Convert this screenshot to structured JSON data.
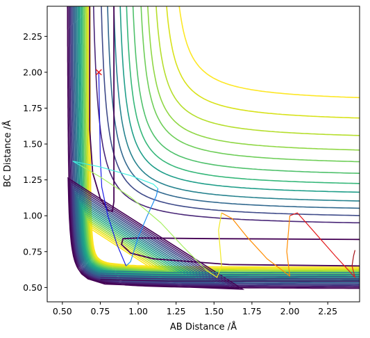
{
  "chart_data": {
    "type": "contour",
    "xlabel": "AB Distance /Å",
    "ylabel": "BC Distance /Å",
    "xlim": [
      0.4,
      2.46
    ],
    "ylim": [
      0.4,
      2.46
    ],
    "xticks": [
      "0.50",
      "0.75",
      "1.00",
      "1.25",
      "1.50",
      "1.75",
      "2.00",
      "2.25"
    ],
    "yticks": [
      "0.50",
      "0.75",
      "1.00",
      "1.25",
      "1.50",
      "1.75",
      "2.00",
      "2.25"
    ],
    "grid": false,
    "colormap": [
      "#440154",
      "#482677",
      "#3e4a89",
      "#31688e",
      "#26828e",
      "#1f9e89",
      "#35b779",
      "#6ece58",
      "#b5de2b",
      "#fde725"
    ],
    "contour_levels": [
      {
        "x0": 0.68,
        "y0": 0.64,
        "color": "#fde725"
      },
      {
        "x0": 0.672,
        "y0": 0.632,
        "color": "#f5e424"
      },
      {
        "x0": 0.664,
        "y0": 0.624,
        "color": "#d8e219"
      },
      {
        "x0": 0.656,
        "y0": 0.616,
        "color": "#b5de2b"
      },
      {
        "x0": 0.648,
        "y0": 0.608,
        "color": "#8fd744"
      },
      {
        "x0": 0.64,
        "y0": 0.6,
        "color": "#6ece58"
      },
      {
        "x0": 0.632,
        "y0": 0.592,
        "color": "#4fc16b"
      },
      {
        "x0": 0.624,
        "y0": 0.584,
        "color": "#35b779"
      },
      {
        "x0": 0.616,
        "y0": 0.576,
        "color": "#25a784"
      },
      {
        "x0": 0.608,
        "y0": 0.568,
        "color": "#1f9e89"
      },
      {
        "x0": 0.6,
        "y0": 0.56,
        "color": "#21918c"
      },
      {
        "x0": 0.592,
        "y0": 0.552,
        "color": "#26828e"
      },
      {
        "x0": 0.584,
        "y0": 0.544,
        "color": "#2c728e"
      },
      {
        "x0": 0.576,
        "y0": 0.536,
        "color": "#31688e"
      },
      {
        "x0": 0.568,
        "y0": 0.528,
        "color": "#365c8d"
      },
      {
        "x0": 0.56,
        "y0": 0.52,
        "color": "#3e4a89"
      },
      {
        "x0": 0.552,
        "y0": 0.512,
        "color": "#433e85"
      },
      {
        "x0": 0.544,
        "y0": 0.504,
        "color": "#482677"
      },
      {
        "x0": 0.536,
        "y0": 0.496,
        "color": "#471365"
      },
      {
        "x0": 0.528,
        "y0": 0.488,
        "color": "#440154"
      }
    ],
    "outer_contours": [
      {
        "x0": 1.55,
        "y0": 1.78,
        "color": "#fde725"
      },
      {
        "x0": 1.48,
        "y0": 1.64,
        "color": "#d8e219"
      },
      {
        "x0": 1.42,
        "y0": 1.52,
        "color": "#b5de2b"
      },
      {
        "x0": 1.37,
        "y0": 1.42,
        "color": "#8fd744"
      },
      {
        "x0": 1.33,
        "y0": 1.34,
        "color": "#6ece58"
      },
      {
        "x0": 1.28,
        "y0": 1.26,
        "color": "#4fc16b"
      },
      {
        "x0": 1.24,
        "y0": 1.19,
        "color": "#35b779"
      },
      {
        "x0": 1.2,
        "y0": 1.13,
        "color": "#1f9e89"
      },
      {
        "x0": 1.16,
        "y0": 1.07,
        "color": "#26828e"
      },
      {
        "x0": 1.12,
        "y0": 1.02,
        "color": "#31688e"
      },
      {
        "x0": 1.08,
        "y0": 0.97,
        "color": "#3e4a89"
      },
      {
        "x0": 1.03,
        "y0": 0.92,
        "color": "#482677"
      }
    ],
    "bottom_contours": [
      {
        "y0": 0.545,
        "color": "#440154"
      },
      {
        "y0": 0.56,
        "color": "#482677"
      },
      {
        "y0": 0.575,
        "color": "#3e4a89"
      },
      {
        "y0": 0.59,
        "color": "#31688e"
      },
      {
        "y0": 0.605,
        "color": "#26828e"
      }
    ],
    "dark_contour": {
      "left_branch": [
        [
          0.68,
          2.46
        ],
        [
          0.68,
          1.6
        ],
        [
          0.7,
          1.3
        ],
        [
          0.75,
          1.12
        ],
        [
          0.8,
          1.04
        ],
        [
          0.83,
          1.03
        ],
        [
          0.84,
          1.1
        ],
        [
          0.84,
          2.46
        ]
      ],
      "right_branch": [
        [
          2.46,
          0.65
        ],
        [
          1.6,
          0.66
        ],
        [
          1.1,
          0.7
        ],
        [
          0.95,
          0.74
        ],
        [
          0.89,
          0.8
        ],
        [
          0.9,
          0.84
        ],
        [
          1.0,
          0.845
        ],
        [
          1.5,
          0.84
        ],
        [
          2.46,
          0.835
        ]
      ],
      "color": "#440154"
    },
    "start_marker": {
      "x": 0.74,
      "y": 2.0,
      "symbol": "x",
      "color": "#e41a1c"
    },
    "trajectory": [
      {
        "points": [
          [
            0.74,
            2.0
          ],
          [
            0.745,
            1.7
          ],
          [
            0.75,
            1.4
          ],
          [
            0.76,
            1.2
          ],
          [
            0.8,
            1.0
          ],
          [
            0.86,
            0.8
          ],
          [
            0.92,
            0.65
          ]
        ],
        "color": "#1a1ae6"
      },
      {
        "points": [
          [
            0.92,
            0.65
          ],
          [
            0.95,
            0.68
          ],
          [
            1.0,
            0.85
          ],
          [
            1.06,
            1.0
          ],
          [
            1.12,
            1.14
          ],
          [
            1.13,
            1.19
          ]
        ],
        "color": "#1f8ef0"
      },
      {
        "points": [
          [
            1.13,
            1.19
          ],
          [
            1.1,
            1.22
          ],
          [
            0.95,
            1.28
          ],
          [
            0.75,
            1.34
          ],
          [
            0.57,
            1.38
          ],
          [
            0.62,
            1.35
          ]
        ],
        "color": "#40f0e0"
      },
      {
        "points": [
          [
            0.62,
            1.35
          ],
          [
            0.75,
            1.27
          ],
          [
            0.95,
            1.13
          ],
          [
            1.15,
            0.95
          ],
          [
            1.3,
            0.78
          ],
          [
            1.45,
            0.62
          ]
        ],
        "color": "#a6f060"
      },
      {
        "points": [
          [
            1.45,
            0.62
          ],
          [
            1.52,
            0.57
          ],
          [
            1.55,
            0.65
          ],
          [
            1.53,
            0.9
          ],
          [
            1.55,
            1.02
          ]
        ],
        "color": "#f0e820"
      },
      {
        "points": [
          [
            1.55,
            1.02
          ],
          [
            1.62,
            0.98
          ],
          [
            1.72,
            0.85
          ],
          [
            1.85,
            0.7
          ],
          [
            2.0,
            0.58
          ],
          [
            1.98,
            0.75
          ],
          [
            2.0,
            1.0
          ]
        ],
        "color": "#ff8c00"
      },
      {
        "points": [
          [
            2.0,
            1.0
          ],
          [
            2.05,
            1.02
          ],
          [
            2.15,
            0.9
          ],
          [
            2.3,
            0.72
          ],
          [
            2.43,
            0.57
          ],
          [
            2.41,
            0.65
          ]
        ],
        "color": "#e31a1c"
      },
      {
        "points": [
          [
            2.41,
            0.65
          ],
          [
            2.42,
            0.72
          ],
          [
            2.43,
            0.76
          ]
        ],
        "color": "#a50f15"
      }
    ]
  }
}
